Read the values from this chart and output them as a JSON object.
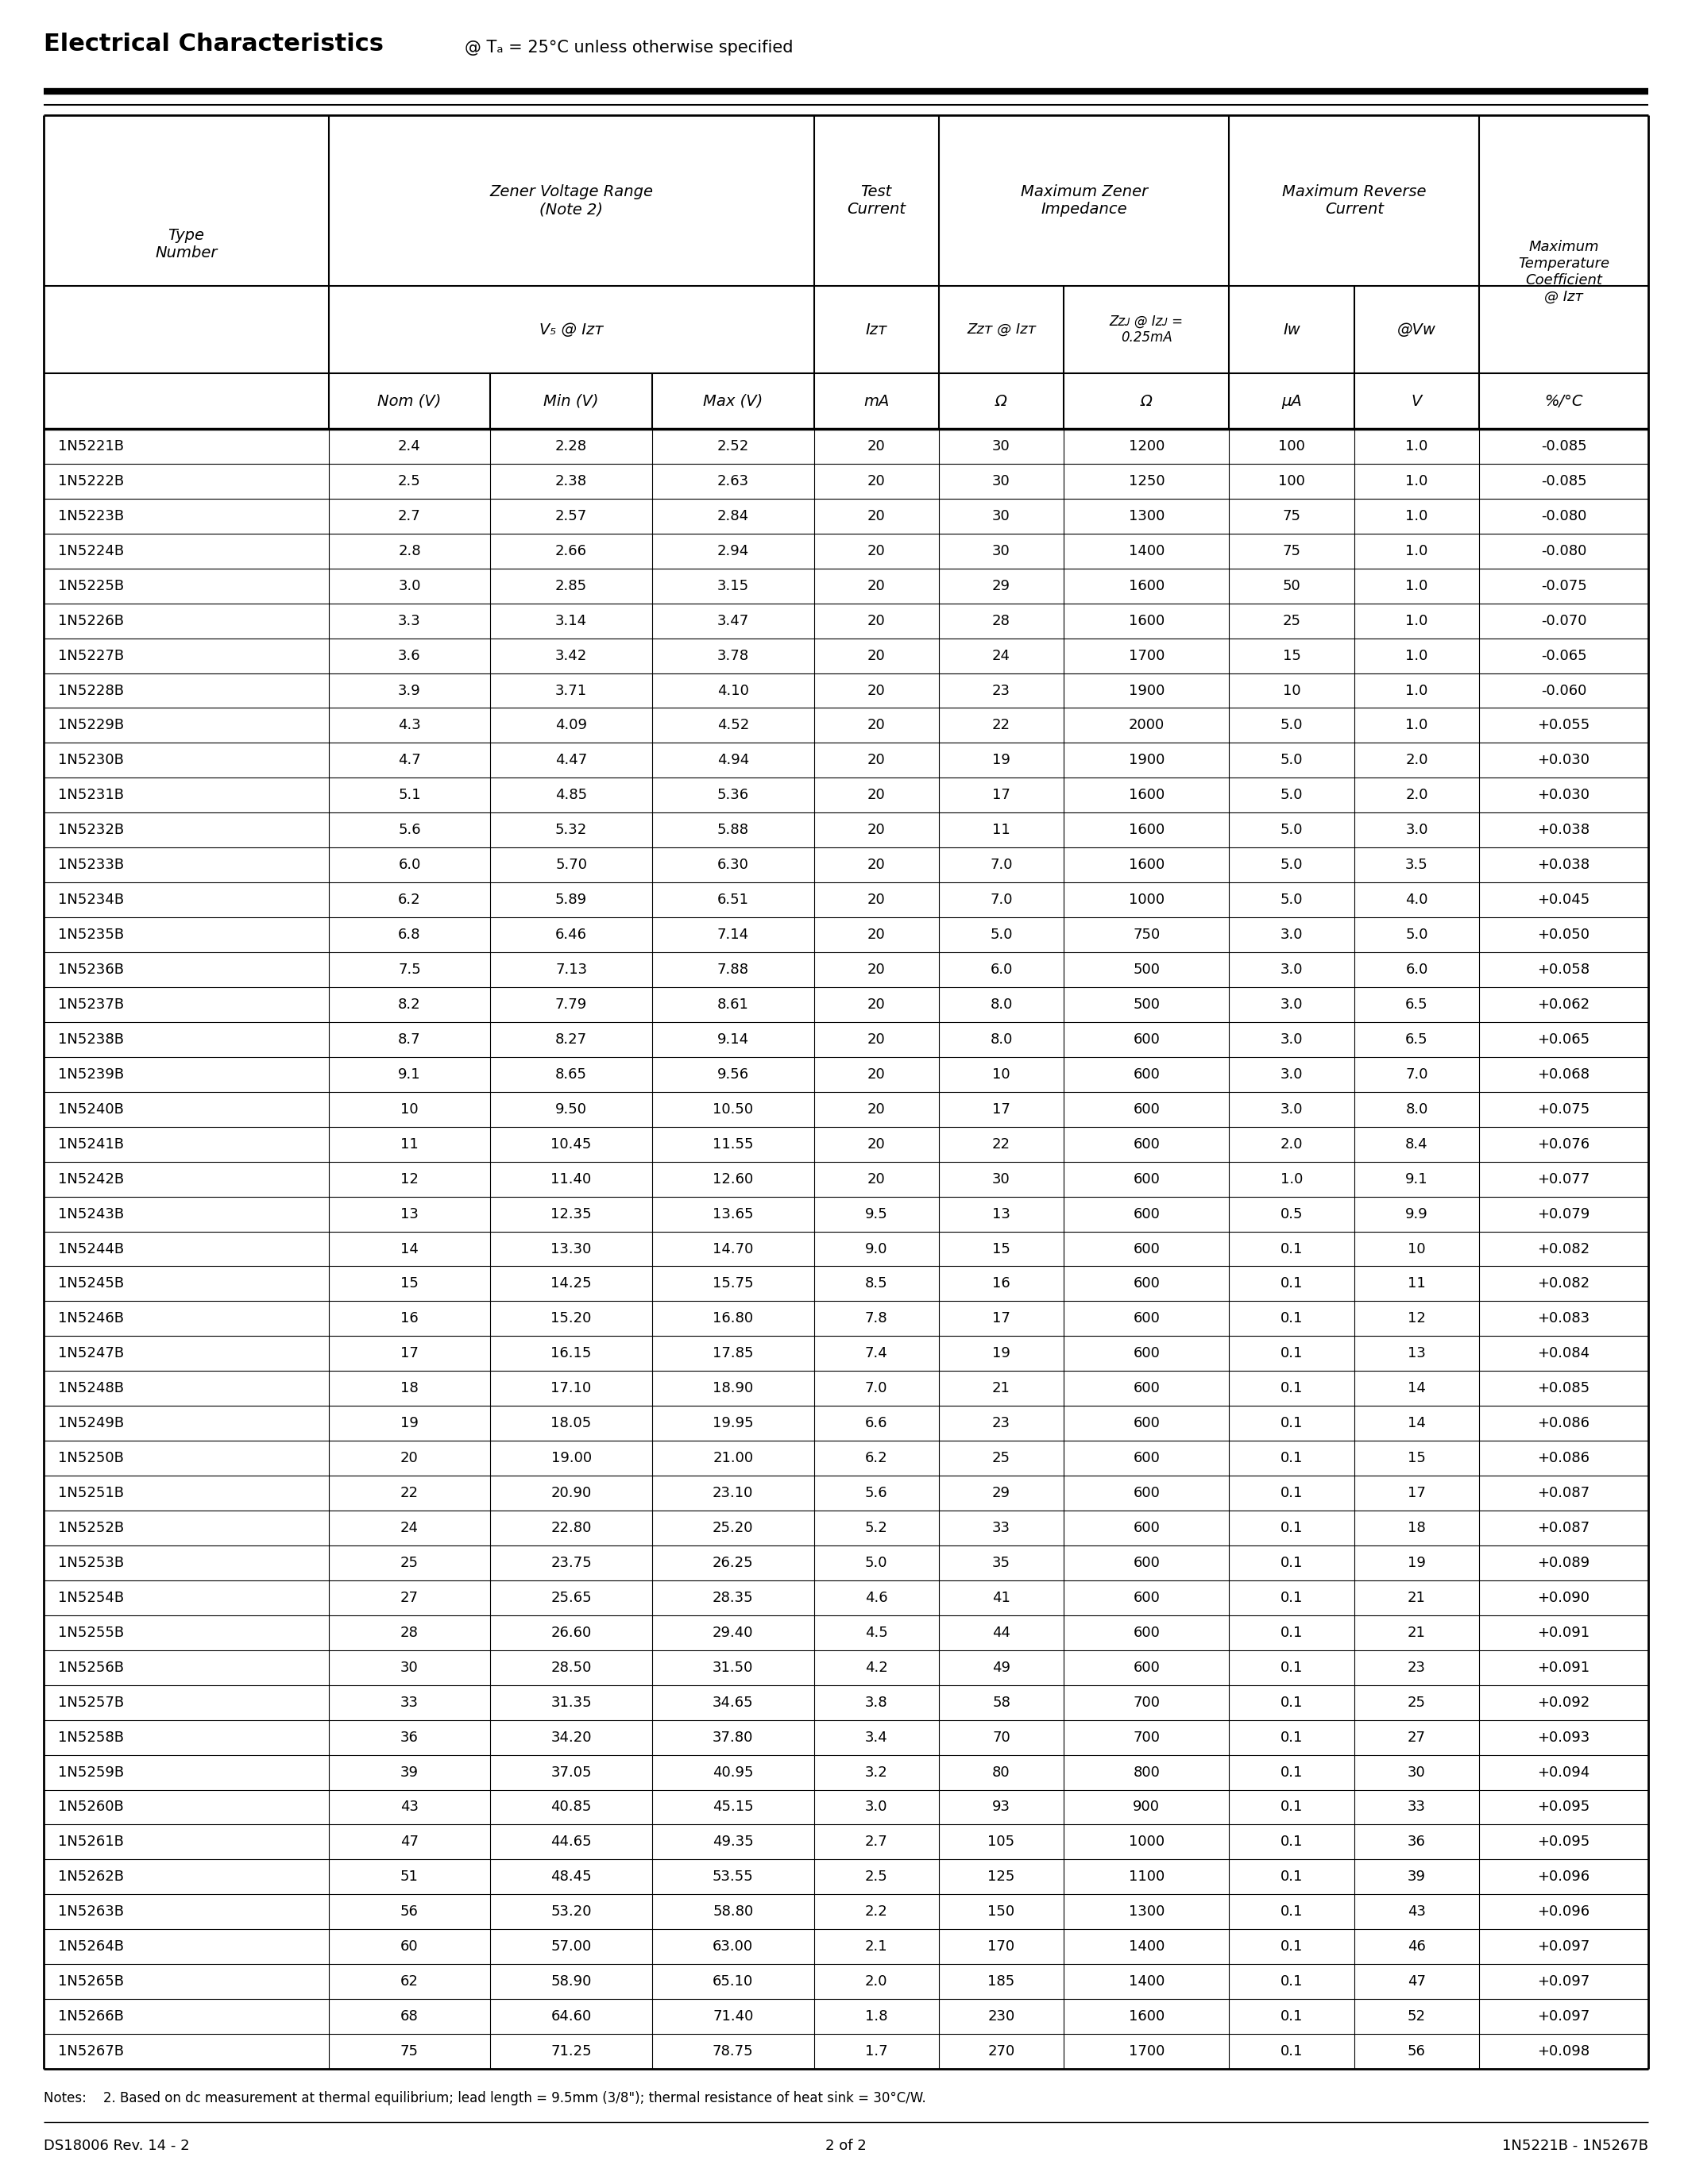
{
  "title_bold": "Electrical Characteristics",
  "title_normal": "@ Tₐ = 25°C unless otherwise specified",
  "note": "Notes:    2. Based on dc measurement at thermal equilibrium; lead length = 9.5mm (3/8\"); thermal resistance of heat sink = 30°C/W.",
  "footer_left": "DS18006 Rev. 14 - 2",
  "footer_center": "2 of 2",
  "footer_right": "1N5221B - 1N5267B",
  "rows": [
    [
      "1N5221B",
      "2.4",
      "2.28",
      "2.52",
      "20",
      "30",
      "1200",
      "100",
      "1.0",
      "-0.085"
    ],
    [
      "1N5222B",
      "2.5",
      "2.38",
      "2.63",
      "20",
      "30",
      "1250",
      "100",
      "1.0",
      "-0.085"
    ],
    [
      "1N5223B",
      "2.7",
      "2.57",
      "2.84",
      "20",
      "30",
      "1300",
      "75",
      "1.0",
      "-0.080"
    ],
    [
      "1N5224B",
      "2.8",
      "2.66",
      "2.94",
      "20",
      "30",
      "1400",
      "75",
      "1.0",
      "-0.080"
    ],
    [
      "1N5225B",
      "3.0",
      "2.85",
      "3.15",
      "20",
      "29",
      "1600",
      "50",
      "1.0",
      "-0.075"
    ],
    [
      "1N5226B",
      "3.3",
      "3.14",
      "3.47",
      "20",
      "28",
      "1600",
      "25",
      "1.0",
      "-0.070"
    ],
    [
      "1N5227B",
      "3.6",
      "3.42",
      "3.78",
      "20",
      "24",
      "1700",
      "15",
      "1.0",
      "-0.065"
    ],
    [
      "1N5228B",
      "3.9",
      "3.71",
      "4.10",
      "20",
      "23",
      "1900",
      "10",
      "1.0",
      "-0.060"
    ],
    [
      "1N5229B",
      "4.3",
      "4.09",
      "4.52",
      "20",
      "22",
      "2000",
      "5.0",
      "1.0",
      "+0.055"
    ],
    [
      "1N5230B",
      "4.7",
      "4.47",
      "4.94",
      "20",
      "19",
      "1900",
      "5.0",
      "2.0",
      "+0.030"
    ],
    [
      "1N5231B",
      "5.1",
      "4.85",
      "5.36",
      "20",
      "17",
      "1600",
      "5.0",
      "2.0",
      "+0.030"
    ],
    [
      "1N5232B",
      "5.6",
      "5.32",
      "5.88",
      "20",
      "11",
      "1600",
      "5.0",
      "3.0",
      "+0.038"
    ],
    [
      "1N5233B",
      "6.0",
      "5.70",
      "6.30",
      "20",
      "7.0",
      "1600",
      "5.0",
      "3.5",
      "+0.038"
    ],
    [
      "1N5234B",
      "6.2",
      "5.89",
      "6.51",
      "20",
      "7.0",
      "1000",
      "5.0",
      "4.0",
      "+0.045"
    ],
    [
      "1N5235B",
      "6.8",
      "6.46",
      "7.14",
      "20",
      "5.0",
      "750",
      "3.0",
      "5.0",
      "+0.050"
    ],
    [
      "1N5236B",
      "7.5",
      "7.13",
      "7.88",
      "20",
      "6.0",
      "500",
      "3.0",
      "6.0",
      "+0.058"
    ],
    [
      "1N5237B",
      "8.2",
      "7.79",
      "8.61",
      "20",
      "8.0",
      "500",
      "3.0",
      "6.5",
      "+0.062"
    ],
    [
      "1N5238B",
      "8.7",
      "8.27",
      "9.14",
      "20",
      "8.0",
      "600",
      "3.0",
      "6.5",
      "+0.065"
    ],
    [
      "1N5239B",
      "9.1",
      "8.65",
      "9.56",
      "20",
      "10",
      "600",
      "3.0",
      "7.0",
      "+0.068"
    ],
    [
      "1N5240B",
      "10",
      "9.50",
      "10.50",
      "20",
      "17",
      "600",
      "3.0",
      "8.0",
      "+0.075"
    ],
    [
      "1N5241B",
      "11",
      "10.45",
      "11.55",
      "20",
      "22",
      "600",
      "2.0",
      "8.4",
      "+0.076"
    ],
    [
      "1N5242B",
      "12",
      "11.40",
      "12.60",
      "20",
      "30",
      "600",
      "1.0",
      "9.1",
      "+0.077"
    ],
    [
      "1N5243B",
      "13",
      "12.35",
      "13.65",
      "9.5",
      "13",
      "600",
      "0.5",
      "9.9",
      "+0.079"
    ],
    [
      "1N5244B",
      "14",
      "13.30",
      "14.70",
      "9.0",
      "15",
      "600",
      "0.1",
      "10",
      "+0.082"
    ],
    [
      "1N5245B",
      "15",
      "14.25",
      "15.75",
      "8.5",
      "16",
      "600",
      "0.1",
      "11",
      "+0.082"
    ],
    [
      "1N5246B",
      "16",
      "15.20",
      "16.80",
      "7.8",
      "17",
      "600",
      "0.1",
      "12",
      "+0.083"
    ],
    [
      "1N5247B",
      "17",
      "16.15",
      "17.85",
      "7.4",
      "19",
      "600",
      "0.1",
      "13",
      "+0.084"
    ],
    [
      "1N5248B",
      "18",
      "17.10",
      "18.90",
      "7.0",
      "21",
      "600",
      "0.1",
      "14",
      "+0.085"
    ],
    [
      "1N5249B",
      "19",
      "18.05",
      "19.95",
      "6.6",
      "23",
      "600",
      "0.1",
      "14",
      "+0.086"
    ],
    [
      "1N5250B",
      "20",
      "19.00",
      "21.00",
      "6.2",
      "25",
      "600",
      "0.1",
      "15",
      "+0.086"
    ],
    [
      "1N5251B",
      "22",
      "20.90",
      "23.10",
      "5.6",
      "29",
      "600",
      "0.1",
      "17",
      "+0.087"
    ],
    [
      "1N5252B",
      "24",
      "22.80",
      "25.20",
      "5.2",
      "33",
      "600",
      "0.1",
      "18",
      "+0.087"
    ],
    [
      "1N5253B",
      "25",
      "23.75",
      "26.25",
      "5.0",
      "35",
      "600",
      "0.1",
      "19",
      "+0.089"
    ],
    [
      "1N5254B",
      "27",
      "25.65",
      "28.35",
      "4.6",
      "41",
      "600",
      "0.1",
      "21",
      "+0.090"
    ],
    [
      "1N5255B",
      "28",
      "26.60",
      "29.40",
      "4.5",
      "44",
      "600",
      "0.1",
      "21",
      "+0.091"
    ],
    [
      "1N5256B",
      "30",
      "28.50",
      "31.50",
      "4.2",
      "49",
      "600",
      "0.1",
      "23",
      "+0.091"
    ],
    [
      "1N5257B",
      "33",
      "31.35",
      "34.65",
      "3.8",
      "58",
      "700",
      "0.1",
      "25",
      "+0.092"
    ],
    [
      "1N5258B",
      "36",
      "34.20",
      "37.80",
      "3.4",
      "70",
      "700",
      "0.1",
      "27",
      "+0.093"
    ],
    [
      "1N5259B",
      "39",
      "37.05",
      "40.95",
      "3.2",
      "80",
      "800",
      "0.1",
      "30",
      "+0.094"
    ],
    [
      "1N5260B",
      "43",
      "40.85",
      "45.15",
      "3.0",
      "93",
      "900",
      "0.1",
      "33",
      "+0.095"
    ],
    [
      "1N5261B",
      "47",
      "44.65",
      "49.35",
      "2.7",
      "105",
      "1000",
      "0.1",
      "36",
      "+0.095"
    ],
    [
      "1N5262B",
      "51",
      "48.45",
      "53.55",
      "2.5",
      "125",
      "1100",
      "0.1",
      "39",
      "+0.096"
    ],
    [
      "1N5263B",
      "56",
      "53.20",
      "58.80",
      "2.2",
      "150",
      "1300",
      "0.1",
      "43",
      "+0.096"
    ],
    [
      "1N5264B",
      "60",
      "57.00",
      "63.00",
      "2.1",
      "170",
      "1400",
      "0.1",
      "46",
      "+0.097"
    ],
    [
      "1N5265B",
      "62",
      "58.90",
      "65.10",
      "2.0",
      "185",
      "1400",
      "0.1",
      "47",
      "+0.097"
    ],
    [
      "1N5266B",
      "68",
      "64.60",
      "71.40",
      "1.8",
      "230",
      "1600",
      "0.1",
      "52",
      "+0.097"
    ],
    [
      "1N5267B",
      "75",
      "71.25",
      "78.75",
      "1.7",
      "270",
      "1700",
      "0.1",
      "56",
      "+0.098"
    ]
  ],
  "bg_color": "#ffffff",
  "text_color": "#000000"
}
